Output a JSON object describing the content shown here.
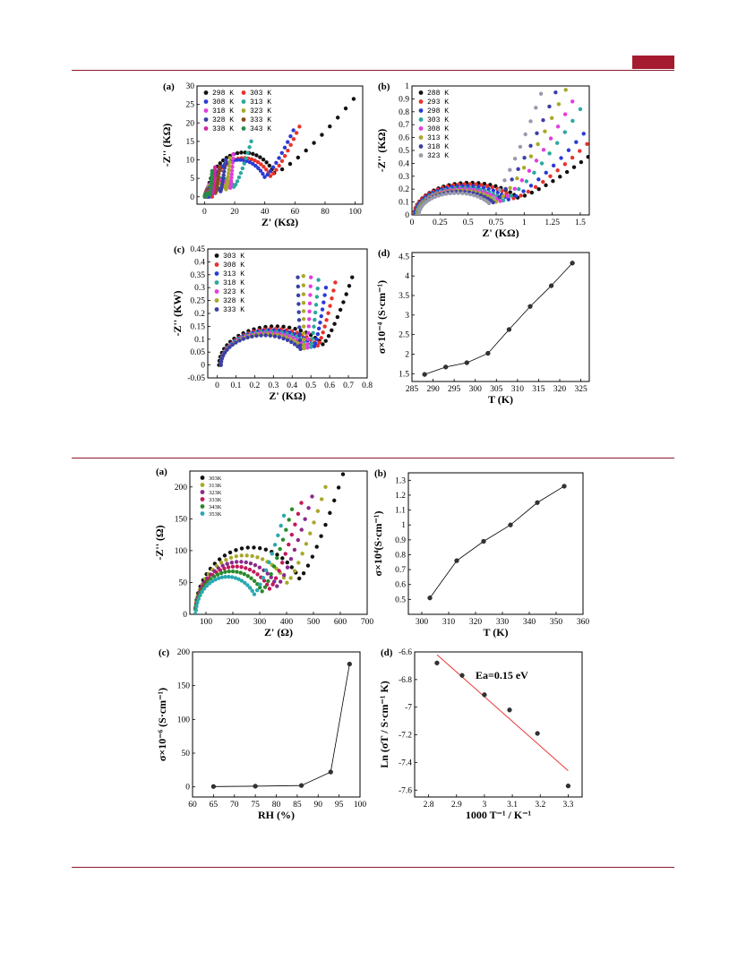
{
  "page": {
    "header_bar_color": "#a51b30",
    "rule_color": "#8b1a2b"
  },
  "figure1": {
    "panels": [
      {
        "label": "(a)",
        "type": "scatter",
        "xlabel": "Z' (KΩ)",
        "ylabel": "-Z'' (KΩ)",
        "xlim": [
          -5,
          105
        ],
        "ylim": [
          -2,
          30
        ],
        "xticks": [
          0,
          20,
          40,
          60,
          80,
          100
        ],
        "yticks": [
          0,
          5,
          10,
          15,
          20,
          25,
          30
        ],
        "legend_cols": 2,
        "legend_font": "mono",
        "series": [
          {
            "name": "298 K",
            "color": "#111111",
            "center": 26,
            "radius": 24,
            "rise": [
              0.49,
              0.05
            ],
            "max": 26.5,
            "end": 99
          },
          {
            "name": "303 K",
            "color": "#e8322b",
            "center": 26,
            "radius": 21,
            "rise": [
              0.6,
              0.0
            ],
            "max": 19,
            "end": 63
          },
          {
            "name": "308 K",
            "color": "#2a3bd6",
            "center": 23,
            "radius": 20,
            "rise": [
              0.55,
              0.0
            ],
            "max": 18,
            "end": 59
          },
          {
            "name": "313 K",
            "color": "#2aa8a0",
            "center": 11,
            "radius": 10,
            "rise": [
              0.9,
              0.0
            ],
            "max": 15,
            "end": 31
          },
          {
            "name": "318 K",
            "color": "#e33ce0",
            "center": 9.5,
            "radius": 9,
            "rise": [
              1.3,
              0.0
            ],
            "max": 11.5,
            "end": 19
          },
          {
            "name": "323 K",
            "color": "#a9a82a",
            "center": 8,
            "radius": 7.5,
            "rise": [
              1.2,
              0.0
            ],
            "max": 10.5,
            "end": 17
          },
          {
            "name": "328 K",
            "color": "#3b3fa8",
            "center": 6,
            "radius": 5.5,
            "rise": [
              1.3,
              0.0
            ],
            "max": 10,
            "end": 14
          },
          {
            "name": "333 K",
            "color": "#8a4a1a",
            "center": 4,
            "radius": 3.8,
            "rise": [
              1.6,
              0.0
            ],
            "max": 8,
            "end": 10
          },
          {
            "name": "338 K",
            "color": "#d2269e",
            "center": 3,
            "radius": 2.8,
            "rise": [
              2.0,
              0.0
            ],
            "max": 8,
            "end": 7
          },
          {
            "name": "343 K",
            "color": "#2a8a4a",
            "center": 2,
            "radius": 1.9,
            "rise": [
              2.5,
              0.0
            ],
            "max": 7,
            "end": 5
          }
        ]
      },
      {
        "label": "(b)",
        "type": "scatter",
        "xlabel": "Z' (KΩ)",
        "ylabel": "-Z'' (KΩ)",
        "xlim": [
          0.0,
          1.58
        ],
        "ylim": [
          0.0,
          1.0
        ],
        "xticks": [
          0.0,
          0.25,
          0.5,
          0.75,
          1.0,
          1.25,
          1.5
        ],
        "yticks": [
          0.0,
          0.1,
          0.2,
          0.3,
          0.4,
          0.5,
          0.6,
          0.7,
          0.8,
          0.9,
          1.0
        ],
        "legend_cols": 1,
        "legend_font": "mono",
        "series": [
          {
            "name": "288 K",
            "color": "#111111",
            "center": 0.52,
            "radius": 0.5,
            "rise": [
              0.9,
              0.2
            ],
            "max": 0.45,
            "end": 1.57
          },
          {
            "name": "293 K",
            "color": "#e8322b",
            "center": 0.5,
            "radius": 0.48,
            "rise": [
              1.0,
              0.2
            ],
            "max": 0.55,
            "end": 1.56
          },
          {
            "name": "298 K",
            "color": "#2a3bd6",
            "center": 0.48,
            "radius": 0.45,
            "rise": [
              1.1,
              0.2
            ],
            "max": 0.63,
            "end": 1.53
          },
          {
            "name": "303 K",
            "color": "#2aa8a0",
            "center": 0.46,
            "radius": 0.42,
            "rise": [
              1.2,
              0.2
            ],
            "max": 0.82,
            "end": 1.5
          },
          {
            "name": "308 K",
            "color": "#e33ce0",
            "center": 0.45,
            "radius": 0.4,
            "rise": [
              1.3,
              0.2
            ],
            "max": 0.88,
            "end": 1.43
          },
          {
            "name": "313 K",
            "color": "#a9a82a",
            "center": 0.43,
            "radius": 0.38,
            "rise": [
              1.4,
              0.2
            ],
            "max": 0.97,
            "end": 1.37
          },
          {
            "name": "318 K",
            "color": "#3b3fa8",
            "center": 0.42,
            "radius": 0.36,
            "rise": [
              1.5,
              0.2
            ],
            "max": 0.95,
            "end": 1.28
          },
          {
            "name": "323 K",
            "color": "#9a9aaa",
            "center": 0.4,
            "radius": 0.34,
            "rise": [
              1.6,
              0.2
            ],
            "max": 0.94,
            "end": 1.15
          }
        ]
      },
      {
        "label": "(c)",
        "type": "scatter",
        "xlabel": "Z' (KΩ)",
        "ylabel": "-Z'' (KW)",
        "xlim": [
          -0.05,
          0.8
        ],
        "ylim": [
          -0.05,
          0.45
        ],
        "xticks": [
          0.0,
          0.1,
          0.2,
          0.3,
          0.4,
          0.5,
          0.6,
          0.7,
          0.8
        ],
        "yticks": [
          -0.05,
          0.0,
          0.05,
          0.1,
          0.15,
          0.2,
          0.25,
          0.3,
          0.35,
          0.4,
          0.45
        ],
        "legend_cols": 1,
        "legend_font": "mono",
        "series": [
          {
            "name": "303 K",
            "color": "#111111",
            "center": 0.31,
            "radius": 0.3,
            "rise": [
              0.9,
              0.0
            ],
            "max": 0.34,
            "end": 0.72
          },
          {
            "name": "308 K",
            "color": "#e8322b",
            "center": 0.3,
            "radius": 0.28,
            "rise": [
              1.0,
              0.0
            ],
            "max": 0.32,
            "end": 0.63
          },
          {
            "name": "313 K",
            "color": "#2a3bd6",
            "center": 0.29,
            "radius": 0.27,
            "rise": [
              1.1,
              0.0
            ],
            "max": 0.3,
            "end": 0.58
          },
          {
            "name": "318 K",
            "color": "#2aa8a0",
            "center": 0.28,
            "radius": 0.26,
            "rise": [
              1.2,
              0.0
            ],
            "max": 0.33,
            "end": 0.54
          },
          {
            "name": "323 K",
            "color": "#e33ce0",
            "center": 0.27,
            "radius": 0.25,
            "rise": [
              1.3,
              0.0
            ],
            "max": 0.34,
            "end": 0.5
          },
          {
            "name": "328 K",
            "color": "#a9a82a",
            "center": 0.26,
            "radius": 0.24,
            "rise": [
              1.4,
              0.0
            ],
            "max": 0.345,
            "end": 0.46
          },
          {
            "name": "333 K",
            "color": "#3b3fa8",
            "center": 0.25,
            "radius": 0.23,
            "rise": [
              1.5,
              0.0
            ],
            "max": 0.34,
            "end": 0.43
          }
        ]
      },
      {
        "label": "(d)",
        "type": "line",
        "xlabel": "T (K)",
        "ylabel": "σ×10⁻⁴ (S·cm⁻¹)",
        "xlim": [
          285,
          327
        ],
        "ylim": [
          1.3,
          4.6
        ],
        "xticks": [
          285,
          290,
          295,
          300,
          305,
          310,
          315,
          320,
          325
        ],
        "yticks": [
          1.5,
          2.0,
          2.5,
          3.0,
          3.5,
          4.0,
          4.5
        ],
        "x": [
          288,
          293,
          298,
          303,
          308,
          313,
          318,
          323
        ],
        "y": [
          1.48,
          1.67,
          1.78,
          2.02,
          2.63,
          3.22,
          3.75,
          4.33
        ]
      }
    ]
  },
  "figure2": {
    "panels": [
      {
        "label": "(a)",
        "type": "scatter",
        "xlabel": "Z' (Ω)",
        "ylabel": "-Z'' (Ω)",
        "xlim": [
          40,
          700
        ],
        "ylim": [
          0,
          225
        ],
        "xticks": [
          100,
          200,
          300,
          400,
          500,
          600,
          700
        ],
        "yticks": [
          0,
          50,
          100,
          150,
          200
        ],
        "legend_cols": 1,
        "legend_font": "small",
        "series": [
          {
            "name": "303K",
            "color": "#111111",
            "center": 270,
            "radius": 210,
            "rise": [
              0.9,
              0.0
            ],
            "max": 220,
            "end": 610
          },
          {
            "name": "313K",
            "color": "#a9a82a",
            "center": 245,
            "radius": 185,
            "rise": [
              0.95,
              0.0
            ],
            "max": 200,
            "end": 545
          },
          {
            "name": "323K",
            "color": "#8a2a8a",
            "center": 225,
            "radius": 165,
            "rise": [
              1.0,
              0.0
            ],
            "max": 185,
            "end": 495
          },
          {
            "name": "333K",
            "color": "#c2185b",
            "center": 210,
            "radius": 150,
            "rise": [
              1.05,
              0.0
            ],
            "max": 175,
            "end": 455
          },
          {
            "name": "343K",
            "color": "#2a8a2a",
            "center": 195,
            "radius": 135,
            "rise": [
              1.1,
              0.0
            ],
            "max": 165,
            "end": 420
          },
          {
            "name": "353K",
            "color": "#2aa8b0",
            "center": 180,
            "radius": 118,
            "rise": [
              1.15,
              0.0
            ],
            "max": 155,
            "end": 390
          }
        ]
      },
      {
        "label": "(b)",
        "type": "line",
        "xlabel": "T (K)",
        "ylabel": "σ×10⁴(S·cm⁻¹)",
        "xlim": [
          295,
          360
        ],
        "ylim": [
          0.4,
          1.35
        ],
        "xticks": [
          300,
          310,
          320,
          330,
          340,
          350,
          360
        ],
        "yticks": [
          0.5,
          0.6,
          0.7,
          0.8,
          0.9,
          1.0,
          1.1,
          1.2,
          1.3
        ],
        "x": [
          303,
          313,
          323,
          333,
          343,
          353
        ],
        "y": [
          0.51,
          0.76,
          0.89,
          1.0,
          1.15,
          1.26
        ]
      },
      {
        "label": "(c)",
        "type": "line",
        "xlabel": "RH (%)",
        "ylabel": "σ×10⁻⁶ (S·cm⁻¹)",
        "xlim": [
          60,
          100
        ],
        "ylim": [
          -15,
          200
        ],
        "xticks": [
          60,
          65,
          70,
          75,
          80,
          85,
          90,
          95,
          100
        ],
        "yticks": [
          0,
          50,
          100,
          150,
          200
        ],
        "x": [
          65,
          75,
          86,
          93,
          97.5
        ],
        "y": [
          0.5,
          1,
          2,
          22,
          182
        ]
      },
      {
        "label": "(d)",
        "type": "scatter",
        "xlabel": "1000 T⁻¹ / K⁻¹",
        "ylabel": "Ln (σT / S·cm⁻¹ K)",
        "xlim": [
          2.75,
          3.35
        ],
        "ylim": [
          -7.65,
          -6.6
        ],
        "xticks": [
          2.8,
          2.9,
          3.0,
          3.1,
          3.2,
          3.3
        ],
        "yticks": [
          -6.6,
          -6.8,
          -7.0,
          -7.2,
          -7.4,
          -7.6
        ],
        "x": [
          2.83,
          2.92,
          3.0,
          3.09,
          3.19,
          3.3
        ],
        "y": [
          -6.68,
          -6.77,
          -6.91,
          -7.02,
          -7.19,
          -7.57
        ],
        "fit_line": {
          "x": [
            2.83,
            3.3
          ],
          "y": [
            -6.62,
            -7.46
          ],
          "color": "#e83a3a"
        },
        "annotation": "Ea=0.15 eV"
      }
    ]
  }
}
